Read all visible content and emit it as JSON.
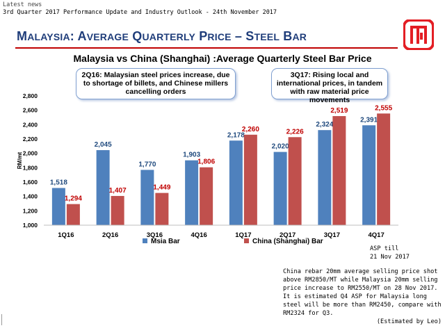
{
  "header": {
    "news_label": "Latest news",
    "doc_title": "3rd Quarter 2017 Performance Update and Industry Outlook - 24th November 2017"
  },
  "slide": {
    "title_parts": [
      {
        "text": "M",
        "big": true
      },
      {
        "text": "ALAYSIA",
        "big": false
      },
      {
        "text": ": A",
        "big": true
      },
      {
        "text": "VERAGE",
        "big": false
      },
      {
        "text": " Q",
        "big": true
      },
      {
        "text": "UARTERLY",
        "big": false
      },
      {
        "text": " P",
        "big": true
      },
      {
        "text": "RICE",
        "big": false
      },
      {
        "text": " – S",
        "big": true
      },
      {
        "text": "TEEL",
        "big": false
      },
      {
        "text": " B",
        "big": true
      },
      {
        "text": "AR",
        "big": false
      }
    ],
    "title_text": "Malaysia: Average Quarterly Price – Steel Bar",
    "logo_color": "#e31e24",
    "rule_color": "#c00000",
    "title_color": "#1f3d7a"
  },
  "callouts": {
    "left": "2Q16: Malaysian steel prices increase, due to shortage of billets, and Chinese millers cancelling orders",
    "right": "3Q17: Rising local and international prices, in tandem with raw material price movements"
  },
  "notes": {
    "asp_line1": "ASP till",
    "asp_line2": "21 Nov 2017",
    "china_text": "China rebar 20mm average selling price shot above RM2850/MT while Malaysia 20mm selling price increase to RM2550/MT on 28 Nov 2017.  It is estimated Q4 ASP for Malaysia long steel will be more than RM2450, compare with RM2324 for Q3.",
    "estimated_by": "(Estimated by Leo)"
  },
  "chart_data": {
    "type": "bar",
    "title": "Malaysia vs China (Shanghai) :Average Quarterly Steel Bar Price",
    "ylabel": "RM/mt",
    "xlabel": "",
    "ylim": [
      1000,
      2800
    ],
    "yticks": [
      "1,000",
      "1,200",
      "1,400",
      "1,600",
      "1,800",
      "2,000",
      "2,200",
      "2,400",
      "2,600",
      "2,800"
    ],
    "ytick_values": [
      1000,
      1200,
      1400,
      1600,
      1800,
      2000,
      2200,
      2400,
      2600,
      2800
    ],
    "categories": [
      "1Q16",
      "2Q16",
      "3Q16",
      "4Q16",
      "1Q17",
      "2Q17",
      "3Q17",
      "4Q17"
    ],
    "series": [
      {
        "name": "Msia Bar",
        "color": "#4f81bd",
        "label_color": "#1f497d",
        "values": [
          1518,
          2045,
          1770,
          1903,
          2178,
          2020,
          2324,
          2391
        ],
        "labels": [
          "1,518",
          "2,045",
          "1,770",
          "1,903",
          "2,178",
          "2,020",
          "2,324",
          "2,391"
        ]
      },
      {
        "name": "China (Shanghai) Bar",
        "color": "#c0504d",
        "label_color": "#c00000",
        "values": [
          1294,
          1407,
          1449,
          1806,
          2260,
          2226,
          2519,
          2555
        ],
        "labels": [
          "1,294",
          "1,407",
          "1,449",
          "1,806",
          "2,260",
          "2,226",
          "2,519",
          "2,555"
        ]
      }
    ],
    "grid": false,
    "legend_position": "bottom"
  }
}
